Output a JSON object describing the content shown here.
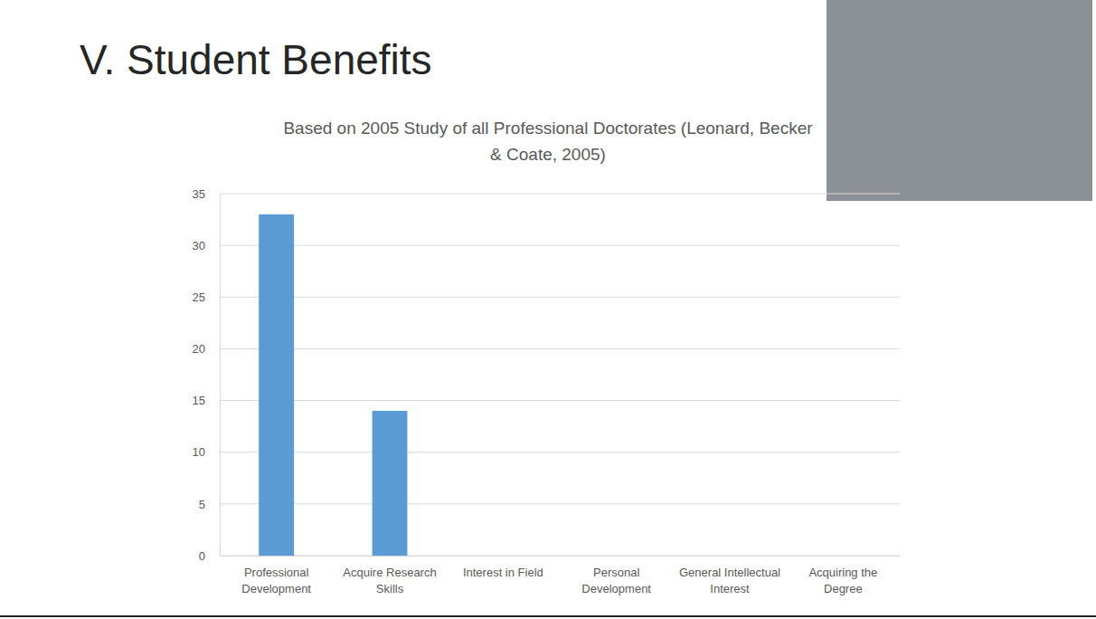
{
  "slide": {
    "title": "V. Student Benefits"
  },
  "chart_data": {
    "type": "bar",
    "title": "Based on 2005 Study of all Professional Doctorates (Leonard, Becker & Coate, 2005)",
    "categories": [
      "Professional Development",
      "Acquire Research Skills",
      "Interest in Field",
      "Personal Development",
      "General Intellectual Interest",
      "Acquiring the Degree"
    ],
    "values": [
      33,
      14,
      null,
      null,
      null,
      null
    ],
    "color": "#5b9bd5",
    "ylim": [
      0,
      35
    ],
    "yticks": [
      0,
      5,
      10,
      15,
      20,
      25,
      30,
      35
    ],
    "grid": true
  }
}
